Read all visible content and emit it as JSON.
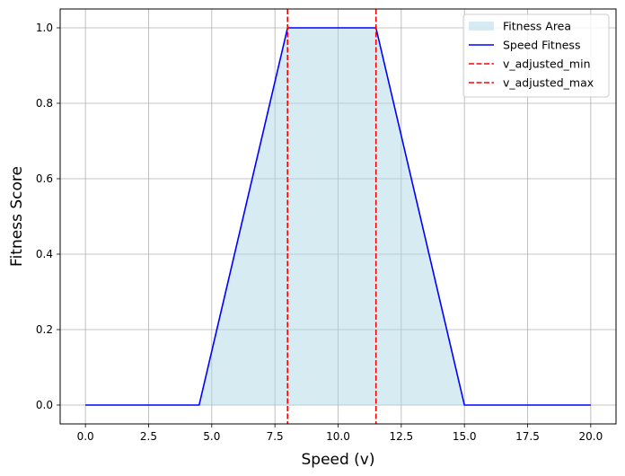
{
  "chart_data": {
    "type": "line",
    "title": "",
    "xlabel": "Speed (v)",
    "ylabel": "Fitness Score",
    "xlim": [
      -1.0,
      21.0
    ],
    "ylim": [
      -0.05,
      1.05
    ],
    "xticks": [
      0.0,
      2.5,
      5.0,
      7.5,
      10.0,
      12.5,
      15.0,
      17.5,
      20.0
    ],
    "xtick_labels": [
      "0.0",
      "2.5",
      "5.0",
      "7.5",
      "10.0",
      "12.5",
      "15.0",
      "17.5",
      "20.0"
    ],
    "yticks": [
      0.0,
      0.2,
      0.4,
      0.6,
      0.8,
      1.0
    ],
    "ytick_labels": [
      "0.0",
      "0.2",
      "0.4",
      "0.6",
      "0.8",
      "1.0"
    ],
    "grid": true,
    "legend_position": "top-right",
    "series": [
      {
        "name": "Speed Fitness",
        "color": "#0000ff",
        "x": [
          0.0,
          4.5,
          8.0,
          11.5,
          15.0,
          20.0
        ],
        "y": [
          0.0,
          0.0,
          1.0,
          1.0,
          0.0,
          0.0
        ]
      }
    ],
    "fill": {
      "name": "Fitness Area",
      "color": "#add8e6",
      "opacity": 0.5
    },
    "vlines": [
      {
        "name": "v_adjusted_min",
        "x": 8.0,
        "color": "#ff0000",
        "style": "dashed"
      },
      {
        "name": "v_adjusted_max",
        "x": 11.5,
        "color": "#ff0000",
        "style": "dashed"
      }
    ]
  }
}
